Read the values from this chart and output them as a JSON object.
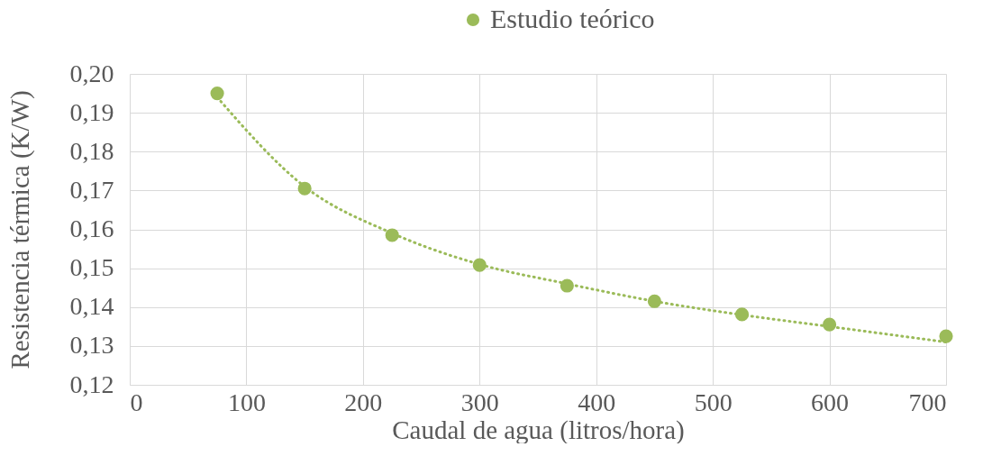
{
  "chart_data": {
    "type": "scatter",
    "xlabel": "Caudal de agua (litros/hora)",
    "ylabel": "Resistencia térmica (K/W)",
    "series": [
      {
        "name": "Estudio teórico",
        "color": "#9bbb59",
        "x": [
          75,
          150,
          225,
          300,
          375,
          450,
          525,
          600,
          700
        ],
        "values": [
          0.195,
          0.1705,
          0.1585,
          0.1508,
          0.1455,
          0.1415,
          0.1381,
          0.1355,
          0.1325
        ]
      },
      {
        "type": "line",
        "color": "#9bbb59",
        "line_style": "dotted",
        "marker": "none",
        "x": [
          75,
          150,
          225,
          300,
          375,
          450,
          525,
          600,
          700
        ],
        "values": [
          0.194,
          0.171,
          0.159,
          0.151,
          0.146,
          0.1415,
          0.138,
          0.135,
          0.131
        ]
      }
    ],
    "xlim": [
      0,
      700
    ],
    "xticks": [
      0,
      100,
      200,
      300,
      400,
      500,
      600,
      700
    ],
    "ylim": [
      0.12,
      0.2
    ],
    "yticks": [
      {
        "value": 0.12,
        "label": "0,12"
      },
      {
        "value": 0.13,
        "label": "0,13"
      },
      {
        "value": 0.14,
        "label": "0,14"
      },
      {
        "value": 0.15,
        "label": "0,15"
      },
      {
        "value": 0.16,
        "label": "0,16"
      },
      {
        "value": 0.17,
        "label": "0,17"
      },
      {
        "value": 0.18,
        "label": "0,18"
      },
      {
        "value": 0.19,
        "label": "0,19"
      },
      {
        "value": 0.2,
        "label": "0,20"
      }
    ],
    "grid": true,
    "legend": "top",
    "marker": "circle"
  }
}
